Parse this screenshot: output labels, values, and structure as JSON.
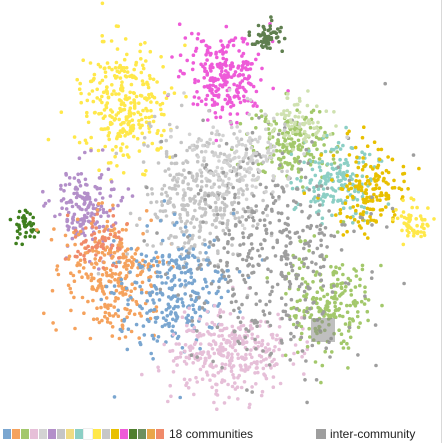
{
  "legend": {
    "communities_label": "18 communities",
    "inter_label": "inter-community",
    "inter_color": "#9e9e9e",
    "community_colors": [
      "#7aa6d0",
      "#f5a25d",
      "#a3c86b",
      "#e6bfd8",
      "#d3d3d3",
      "#b38fc9",
      "#c5c5c5",
      "#f0dc82",
      "#8ccfc5",
      "#ffffff",
      "#ffe84a",
      "#c7c7c7",
      "#e8c000",
      "#ee5bd8",
      "#4f7f2e",
      "#6e8f5e",
      "#e9a64a",
      "#f08a6a"
    ]
  },
  "chart_data": {
    "type": "scatter",
    "title": "",
    "xlabel": "",
    "ylabel": "",
    "grid": false,
    "legend_placement": "bottom",
    "num_communities": 18,
    "clusters": [
      {
        "name": "",
        "color": "#ffe84a",
        "center": [
          125,
          105
        ],
        "spread": [
          22,
          30
        ],
        "count": 300
      },
      {
        "name": "",
        "color": "#ee5bd8",
        "center": [
          225,
          75
        ],
        "spread": [
          20,
          20
        ],
        "count": 260
      },
      {
        "name": "",
        "color": "#5f7f4f",
        "center": [
          266,
          35
        ],
        "spread": [
          8,
          8
        ],
        "count": 60
      },
      {
        "name": "",
        "color": "#a3c86b",
        "center": [
          290,
          145
        ],
        "spread": [
          20,
          18
        ],
        "count": 180
      },
      {
        "name": "",
        "color": "#8ccfc5",
        "center": [
          336,
          180
        ],
        "spread": [
          20,
          20
        ],
        "count": 180
      },
      {
        "name": "",
        "color": "#e8c000",
        "center": [
          372,
          190
        ],
        "spread": [
          18,
          20
        ],
        "count": 160
      },
      {
        "name": "",
        "color": "#ffe84a",
        "center": [
          412,
          222
        ],
        "spread": [
          8,
          10
        ],
        "count": 60
      },
      {
        "name": "",
        "color": "#b38fc9",
        "center": [
          85,
          205
        ],
        "spread": [
          16,
          22
        ],
        "count": 170
      },
      {
        "name": "",
        "color": "#3f7f1e",
        "center": [
          25,
          226
        ],
        "spread": [
          6,
          7
        ],
        "count": 40
      },
      {
        "name": "",
        "color": "#f5a25d",
        "center": [
          110,
          275
        ],
        "spread": [
          22,
          30
        ],
        "count": 280
      },
      {
        "name": "",
        "color": "#c5c5c5",
        "center": [
          200,
          200
        ],
        "spread": [
          30,
          35
        ],
        "count": 340
      },
      {
        "name": "",
        "color": "#7aa6d0",
        "center": [
          170,
          290
        ],
        "spread": [
          28,
          30
        ],
        "count": 280
      },
      {
        "name": "",
        "color": "#e6bfd8",
        "center": [
          230,
          355
        ],
        "spread": [
          30,
          22
        ],
        "count": 340
      },
      {
        "name": "",
        "color": "#a3c86b",
        "center": [
          330,
          300
        ],
        "spread": [
          22,
          25
        ],
        "count": 220
      },
      {
        "name": "",
        "color": "#9e9e9e",
        "center": [
          270,
          250
        ],
        "spread": [
          45,
          55
        ],
        "count": 420
      },
      {
        "name": "",
        "color": "#d3d3d3",
        "center": [
          240,
          160
        ],
        "spread": [
          25,
          25
        ],
        "count": 160
      },
      {
        "name": "",
        "color": "#f08a6a",
        "center": [
          95,
          240
        ],
        "spread": [
          14,
          14
        ],
        "count": 60
      },
      {
        "name": "",
        "color": "#cfe1b0",
        "center": [
          300,
          120
        ],
        "spread": [
          14,
          12
        ],
        "count": 70
      }
    ]
  }
}
